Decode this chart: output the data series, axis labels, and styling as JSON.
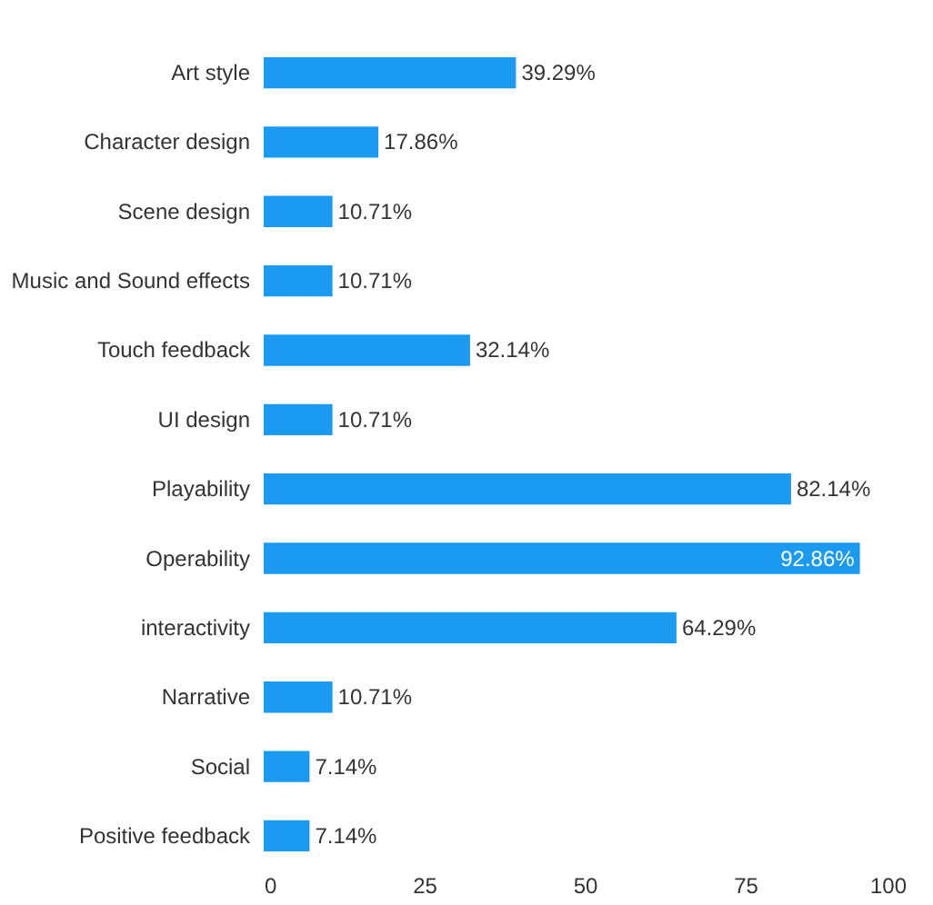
{
  "chart_data": {
    "type": "bar",
    "orientation": "horizontal",
    "categories": [
      "Art style",
      "Character design",
      "Scene design",
      "Music and Sound effects",
      "Touch feedback",
      "UI design",
      "Playability",
      "Operability",
      "interactivity",
      "Narrative",
      "Social",
      "Positive feedback"
    ],
    "values": [
      39.29,
      17.86,
      10.71,
      10.71,
      32.14,
      10.71,
      82.14,
      92.86,
      64.29,
      10.71,
      7.14,
      7.14
    ],
    "value_labels": [
      "39.29%",
      "17.86%",
      "10.71%",
      "10.71%",
      "32.14%",
      "10.71%",
      "82.14%",
      "92.86%",
      "64.29%",
      "10.71%",
      "7.14%",
      "7.14%"
    ],
    "color": "#1a9af0",
    "xlim": [
      0,
      100
    ],
    "xticks": [
      0,
      25,
      50,
      75,
      100
    ],
    "grid": false
  }
}
